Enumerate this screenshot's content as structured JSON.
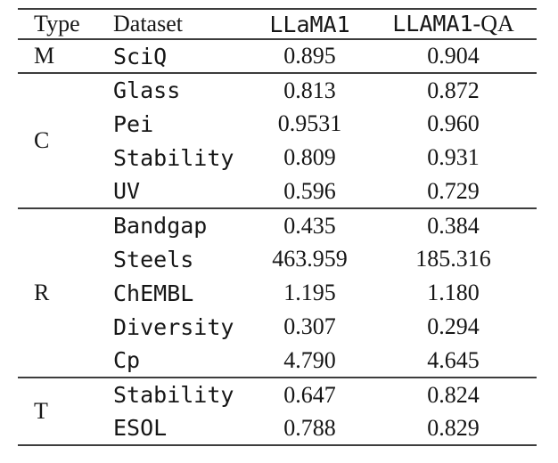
{
  "table": {
    "header": {
      "type": "Type",
      "dataset": "Dataset",
      "llama1": "LLaMA1",
      "llama1_qa": "LLAMA1-QA",
      "llama1_qa_parts": {
        "mono": "LLAMA1",
        "serif": "-QA"
      }
    },
    "groups": [
      {
        "type": "M",
        "rows": [
          {
            "dataset": "SciQ",
            "llama1": "0.895",
            "llama1_qa": "0.904"
          }
        ]
      },
      {
        "type": "C",
        "rows": [
          {
            "dataset": "Glass",
            "llama1": "0.813",
            "llama1_qa": "0.872"
          },
          {
            "dataset": "Pei",
            "llama1": "0.9531",
            "llama1_qa": "0.960"
          },
          {
            "dataset": "Stability",
            "llama1": "0.809",
            "llama1_qa": "0.931"
          },
          {
            "dataset": "UV",
            "llama1": "0.596",
            "llama1_qa": "0.729"
          }
        ]
      },
      {
        "type": "R",
        "rows": [
          {
            "dataset": "Bandgap",
            "llama1": "0.435",
            "llama1_qa": "0.384"
          },
          {
            "dataset": "Steels",
            "llama1": "463.959",
            "llama1_qa": "185.316"
          },
          {
            "dataset": "ChEMBL",
            "llama1": "1.195",
            "llama1_qa": "1.180"
          },
          {
            "dataset": "Diversity",
            "llama1": "0.307",
            "llama1_qa": "0.294"
          },
          {
            "dataset": "Cp",
            "llama1": "4.790",
            "llama1_qa": "4.645"
          }
        ]
      },
      {
        "type": "T",
        "rows": [
          {
            "dataset": "Stability",
            "llama1": "0.647",
            "llama1_qa": "0.824"
          },
          {
            "dataset": "ESOL",
            "llama1": "0.788",
            "llama1_qa": "0.829"
          }
        ]
      }
    ]
  },
  "colors": {
    "background": "#ffffff",
    "text": "#161616",
    "rule": "#3d3d3d"
  }
}
